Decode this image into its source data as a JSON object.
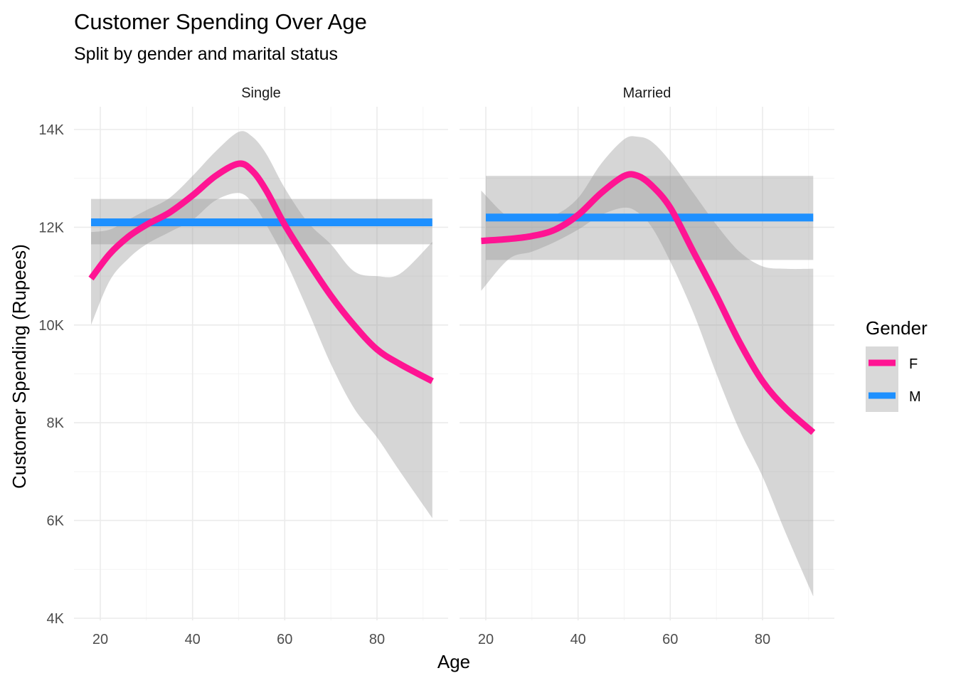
{
  "chart_data": {
    "type": "line",
    "title": "Customer Spending Over Age",
    "subtitle": "Split by gender and marital status",
    "xlabel": "Age",
    "ylabel": "Customer Spending (Rupees)",
    "xlim": [
      15,
      93
    ],
    "ylim": [
      4000,
      14500
    ],
    "x_ticks": [
      20,
      40,
      60,
      80
    ],
    "x_tick_labels": [
      "20",
      "40",
      "60",
      "80"
    ],
    "y_ticks": [
      4000,
      6000,
      8000,
      10000,
      12000,
      14000
    ],
    "y_tick_labels": [
      "4K",
      "6K",
      "8K",
      "10K",
      "12K",
      "14K"
    ],
    "grid": true,
    "legend": {
      "title": "Gender",
      "position": "right",
      "entries": [
        {
          "label": "F",
          "color": "#FF1493"
        },
        {
          "label": "M",
          "color": "#1E90FF"
        }
      ]
    },
    "confidence_band_color": "#999999",
    "panels": [
      {
        "label": "Single",
        "series": [
          {
            "name": "F",
            "color": "#FF1493",
            "x": [
              18,
              22,
              26,
              30,
              35,
              40,
              45,
              50,
              53,
              56,
              60,
              65,
              70,
              75,
              80,
              85,
              92
            ],
            "y": [
              10950,
              11450,
              11800,
              12050,
              12300,
              12650,
              13050,
              13300,
              13150,
              12750,
              12050,
              11300,
              10600,
              10000,
              9500,
              9200,
              8850
            ],
            "lower": [
              10000,
              10900,
              11350,
              11650,
              11900,
              12150,
              12550,
              12700,
              12500,
              12050,
              11350,
              10300,
              9200,
              8300,
              7700,
              7000,
              6050
            ],
            "upper": [
              11900,
              11950,
              12150,
              12350,
              12600,
              13050,
              13550,
              13950,
              13850,
              13500,
              12800,
              12100,
              11650,
              11100,
              11000,
              11050,
              11700
            ]
          },
          {
            "name": "M",
            "color": "#1E90FF",
            "x": [
              18,
              92
            ],
            "y": [
              12100,
              12100
            ],
            "lower": [
              11650,
              11650
            ],
            "upper": [
              12580,
              12580
            ]
          }
        ]
      },
      {
        "label": "Married",
        "series": [
          {
            "name": "F",
            "color": "#FF1493",
            "x": [
              19,
              25,
              30,
              35,
              40,
              45,
              50,
              53,
              56,
              60,
              65,
              70,
              75,
              80,
              85,
              91
            ],
            "y": [
              11720,
              11760,
              11820,
              11950,
              12250,
              12700,
              13050,
              13050,
              12850,
              12400,
              11500,
              10600,
              9650,
              8850,
              8300,
              7800
            ],
            "lower": [
              10700,
              11350,
              11500,
              11700,
              11950,
              12250,
              12400,
              12300,
              12000,
              11300,
              10250,
              9000,
              7850,
              6900,
              5750,
              4450
            ],
            "upper": [
              12750,
              12200,
              12150,
              12250,
              12600,
              13300,
              13800,
              13850,
              13750,
              13350,
              12700,
              12050,
              11500,
              11200,
              11150,
              11150
            ]
          },
          {
            "name": "M",
            "color": "#1E90FF",
            "x": [
              20,
              91
            ],
            "y": [
              12200,
              12200
            ],
            "lower": [
              11330,
              11330
            ],
            "upper": [
              13050,
              13050
            ]
          }
        ]
      }
    ]
  }
}
